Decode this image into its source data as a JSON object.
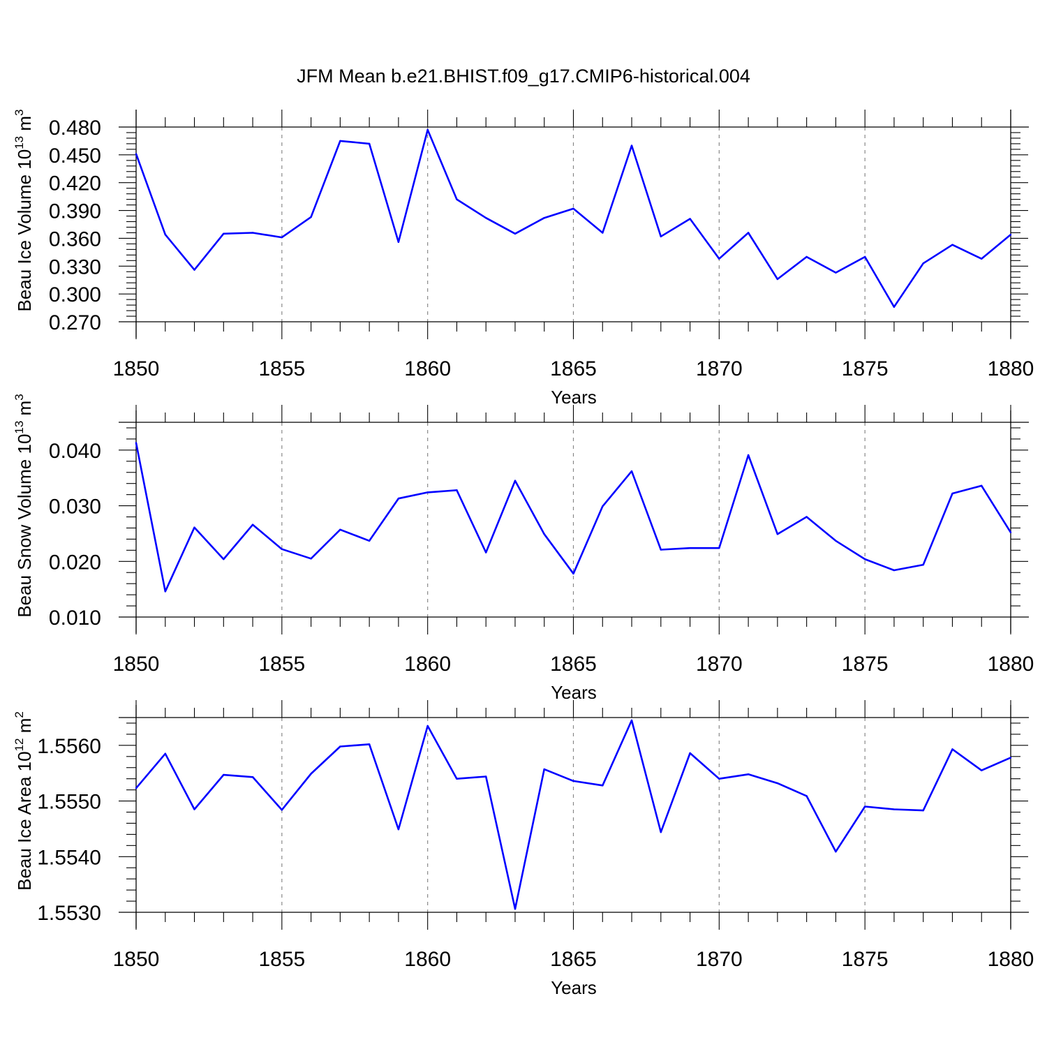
{
  "title": "JFM Mean b.e21.BHIST.f09_g17.CMIP6-historical.004",
  "colors": {
    "series": "#0000ff",
    "frame": "#000000",
    "grid": "#888888"
  },
  "chart_data": [
    {
      "type": "line",
      "title": "JFM Mean b.e21.BHIST.f09_g17.CMIP6-historical.004",
      "xlabel": "Years",
      "ylabel": {
        "base": "Beau Ice Volume 10",
        "exp": "13",
        "unit": " m",
        "unit_exp": "3"
      },
      "xlim": [
        1850,
        1880
      ],
      "ylim": [
        0.27,
        0.48
      ],
      "xticks": [
        "1850",
        "1855",
        "1860",
        "1865",
        "1870",
        "1875",
        "1880"
      ],
      "yticks": [
        "0.270",
        "0.300",
        "0.330",
        "0.360",
        "0.390",
        "0.420",
        "0.450",
        "0.480"
      ],
      "grid": "vertical dashed at major x ticks",
      "x": [
        1850,
        1851,
        1852,
        1853,
        1854,
        1855,
        1856,
        1857,
        1858,
        1859,
        1860,
        1861,
        1862,
        1863,
        1864,
        1865,
        1866,
        1867,
        1868,
        1869,
        1870,
        1871,
        1872,
        1873,
        1874,
        1875,
        1876,
        1877,
        1878,
        1879,
        1880
      ],
      "values": [
        0.451,
        0.364,
        0.326,
        0.365,
        0.366,
        0.361,
        0.383,
        0.465,
        0.462,
        0.356,
        0.477,
        0.402,
        0.382,
        0.365,
        0.382,
        0.392,
        0.366,
        0.46,
        0.362,
        0.381,
        0.338,
        0.366,
        0.316,
        0.34,
        0.323,
        0.34,
        0.286,
        0.333,
        0.353,
        0.338,
        0.364
      ]
    },
    {
      "type": "line",
      "xlabel": "Years",
      "ylabel": {
        "base": "Beau Snow Volume 10",
        "exp": "13",
        "unit": " m",
        "unit_exp": "3"
      },
      "xlim": [
        1850,
        1880
      ],
      "ylim": [
        0.01,
        0.045
      ],
      "xticks": [
        "1850",
        "1855",
        "1860",
        "1865",
        "1870",
        "1875",
        "1880"
      ],
      "yticks": [
        "0.010",
        "0.020",
        "0.030",
        "0.040"
      ],
      "grid": "vertical dashed at major x ticks",
      "x": [
        1850,
        1851,
        1852,
        1853,
        1854,
        1855,
        1856,
        1857,
        1858,
        1859,
        1860,
        1861,
        1862,
        1863,
        1864,
        1865,
        1866,
        1867,
        1868,
        1869,
        1870,
        1871,
        1872,
        1873,
        1874,
        1875,
        1876,
        1877,
        1878,
        1879,
        1880
      ],
      "values": [
        0.0413,
        0.0146,
        0.0261,
        0.0204,
        0.0266,
        0.0222,
        0.0205,
        0.0257,
        0.0237,
        0.0313,
        0.0324,
        0.0328,
        0.0216,
        0.0345,
        0.0249,
        0.0178,
        0.0299,
        0.0362,
        0.0221,
        0.0224,
        0.0224,
        0.0391,
        0.0249,
        0.028,
        0.0237,
        0.0204,
        0.0184,
        0.0194,
        0.0322,
        0.0336,
        0.0252
      ]
    },
    {
      "type": "line",
      "xlabel": "Years",
      "ylabel": {
        "base": "Beau Ice Area 10",
        "exp": "12",
        "unit": " m",
        "unit_exp": "2"
      },
      "xlim": [
        1850,
        1880
      ],
      "ylim": [
        1.553,
        1.5565
      ],
      "xticks": [
        "1850",
        "1855",
        "1860",
        "1865",
        "1870",
        "1875",
        "1880"
      ],
      "yticks": [
        "1.5530",
        "1.5540",
        "1.5550",
        "1.5560"
      ],
      "grid": "vertical dashed at major x ticks",
      "x": [
        1850,
        1851,
        1852,
        1853,
        1854,
        1855,
        1856,
        1857,
        1858,
        1859,
        1860,
        1861,
        1862,
        1863,
        1864,
        1865,
        1866,
        1867,
        1868,
        1869,
        1870,
        1871,
        1872,
        1873,
        1874,
        1875,
        1876,
        1877,
        1878,
        1879,
        1880
      ],
      "values": [
        1.55523,
        1.55585,
        1.55485,
        1.55547,
        1.55543,
        1.55484,
        1.55549,
        1.55598,
        1.55602,
        1.55449,
        1.55635,
        1.5554,
        1.55544,
        1.55306,
        1.55557,
        1.55536,
        1.55528,
        1.55645,
        1.55444,
        1.55586,
        1.5554,
        1.55548,
        1.55532,
        1.55509,
        1.55409,
        1.5549,
        1.55485,
        1.55483,
        1.55593,
        1.55555,
        1.55578
      ]
    }
  ]
}
